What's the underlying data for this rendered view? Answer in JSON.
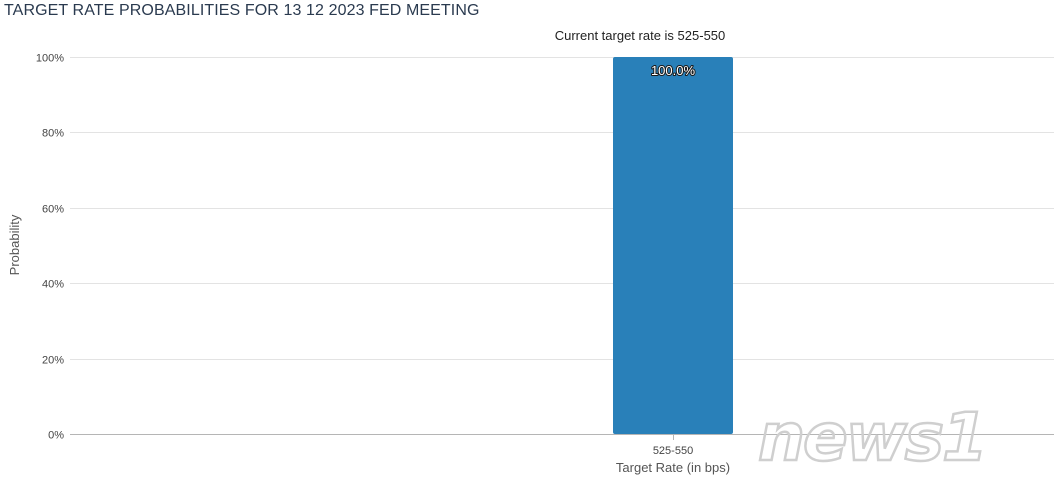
{
  "title": "TARGET RATE PROBABILITIES FOR 13 12 2023 FED MEETING",
  "subtitle": "Current target rate is 525-550",
  "watermark": "news1",
  "colors": {
    "bar": "#2980b9",
    "grid": "#e3e3e3",
    "axis": "#b5b5b5",
    "tick_text": "#444444",
    "label_text": "#555555",
    "title": "#2a3a4f"
  },
  "chart_data": {
    "type": "bar",
    "title": "TARGET RATE PROBABILITIES FOR 13 12 2023 FED MEETING",
    "subtitle": "Current target rate is 525-550",
    "categories": [
      "525-550"
    ],
    "values": [
      100.0
    ],
    "data_labels": [
      "100.0%"
    ],
    "xlabel": "Target Rate (in bps)",
    "ylabel": "Probability",
    "ylim": [
      0,
      100
    ],
    "yticks": [
      0,
      20,
      40,
      60,
      80,
      100
    ],
    "ytick_labels": [
      "0%",
      "20%",
      "40%",
      "60%",
      "80%",
      "100%"
    ],
    "grid": true,
    "legend": "none"
  }
}
